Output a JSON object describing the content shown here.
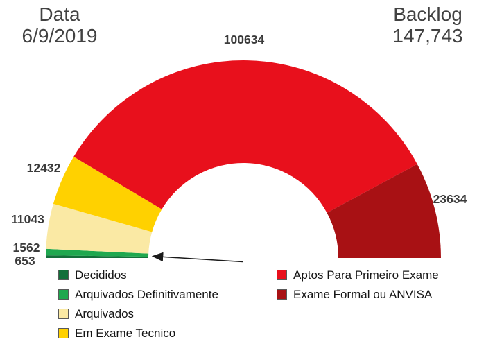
{
  "header": {
    "date_label": "Data",
    "date_value": "6/9/2019",
    "backlog_label": "Backlog",
    "backlog_value": "147,743"
  },
  "chart_data": {
    "type": "pie",
    "variant": "half-donut-gauge",
    "title": "",
    "start_angle_deg": 180,
    "end_angle_deg": 0,
    "value_labels_shown": true,
    "legend_position": "bottom",
    "slices": [
      {
        "label": "Decididos",
        "value": 653,
        "color": "#136f3a"
      },
      {
        "label": "Arquivados Definitivamente",
        "value": 1562,
        "color": "#1fa84f"
      },
      {
        "label": "Arquivados",
        "value": 11043,
        "color": "#fae9a4"
      },
      {
        "label": "Em Exame Tecnico",
        "value": 12432,
        "color": "#ffd100"
      },
      {
        "label": "Aptos Para Primeiro Exame",
        "value": 100634,
        "color": "#e8101c"
      },
      {
        "label": "Exame Formal ou ANVISA",
        "value": 23634,
        "color": "#a81114"
      }
    ],
    "legend_columns": [
      [
        "Decididos",
        "Arquivados Definitivamente",
        "Arquivados",
        "Em Exame Tecnico"
      ],
      [
        "Aptos Para Primeiro Exame",
        "Exame Formal ou ANVISA"
      ]
    ],
    "annotations": [
      "black arrow pointing left to the thin green slices (Decididos / Arquivados Definitivamente) at the lower-left of the gauge"
    ]
  }
}
